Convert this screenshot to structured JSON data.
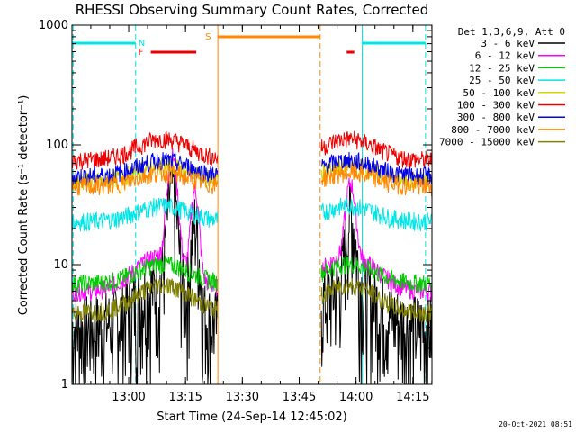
{
  "chart_data": {
    "type": "line",
    "title": "RHESSI Observing Summary Count Rates, Corrected",
    "xlabel": "Start Time (24-Sep-14 12:45:02)",
    "ylabel": "Corrected Count Rate (s⁻¹ detector⁻¹)",
    "y_scale": "log",
    "ylim": [
      1,
      1000
    ],
    "xlim_minutes_after_start": [
      0,
      95
    ],
    "x_tick_labels": [
      "13:00",
      "13:15",
      "13:30",
      "13:45",
      "14:00",
      "14:15"
    ],
    "y_tick_labels": [
      "1",
      "10",
      "100",
      "1000"
    ],
    "legend_title": "Det 1,3,6,9, Att 0",
    "legend_placement": "right",
    "flag_labels": {
      "n": "N",
      "f": "F",
      "s": "S"
    },
    "series": [
      {
        "name": "3 - 6 keV",
        "color": "#000000"
      },
      {
        "name": "6 - 12 keV",
        "color": "#ff00ff"
      },
      {
        "name": "12 - 25 keV",
        "color": "#00cc00"
      },
      {
        "name": "25 - 50 keV",
        "color": "#00e5e5"
      },
      {
        "name": "50 - 100 keV",
        "color": "#d4d400"
      },
      {
        "name": "100 - 300 keV",
        "color": "#ee0000"
      },
      {
        "name": "300 - 800 keV",
        "color": "#0000ee"
      },
      {
        "name": "800 - 7000 keV",
        "color": "#ff8800"
      },
      {
        "name": "7000 - 15000 keV",
        "color": "#808000"
      }
    ]
  },
  "footer": {
    "timestamp": "20-Oct-2021 08:51"
  }
}
